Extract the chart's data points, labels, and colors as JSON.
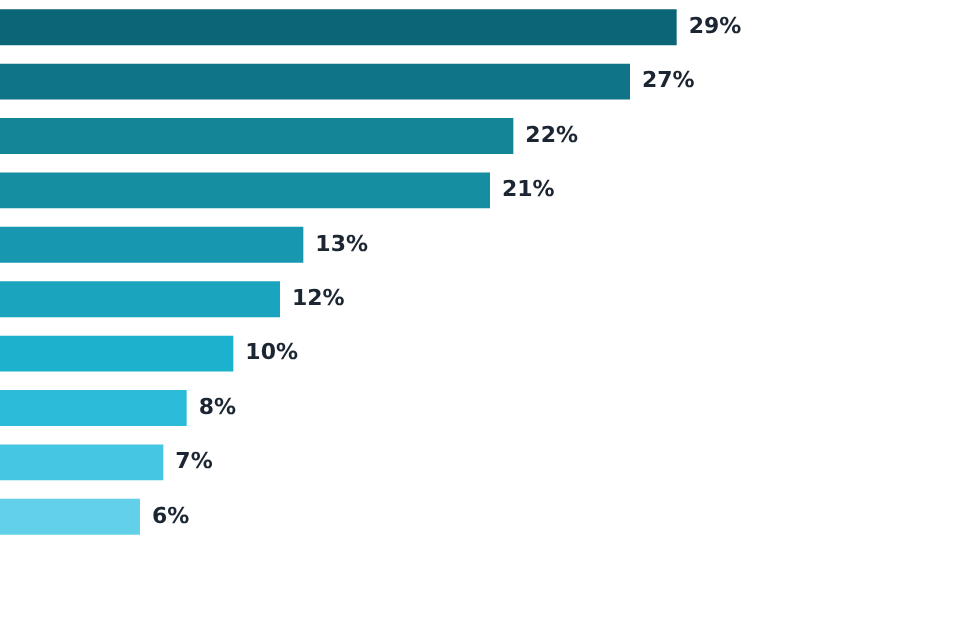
{
  "chart_data": {
    "type": "bar",
    "orientation": "horizontal",
    "categories": [
      null,
      null,
      null,
      null,
      null,
      null,
      null,
      null,
      null,
      null
    ],
    "values": [
      29,
      27,
      22,
      21,
      13,
      12,
      10,
      8,
      7,
      6
    ],
    "colors": [
      "#0b6577",
      "#0f7487",
      "#138597",
      "#158ea2",
      "#1898b0",
      "#1aa4bd",
      "#1cb1cc",
      "#2cbcd9",
      "#45c6e2",
      "#62d0e9"
    ],
    "value_labels": [
      "29%",
      "27%",
      "22%",
      "21%",
      "13%",
      "12%",
      "10%",
      "8%",
      "7%",
      "6%"
    ]
  }
}
